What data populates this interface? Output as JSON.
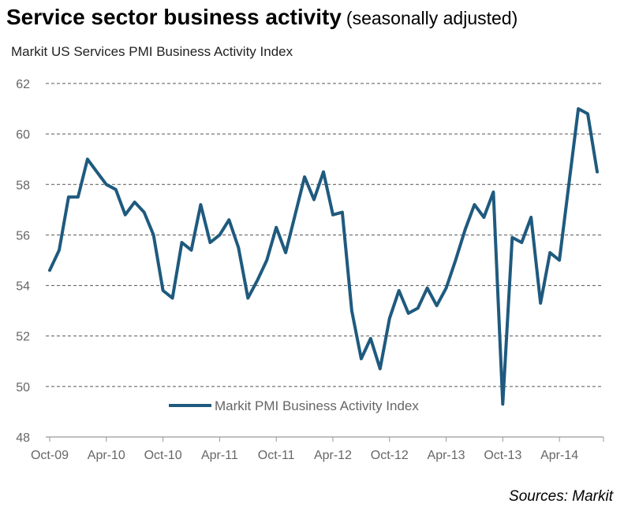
{
  "header": {
    "title": "Service sector business activity",
    "subtitle": "(seasonally adjusted)"
  },
  "footer": {
    "source": "Sources: Markit"
  },
  "colors": {
    "line": "#1f5a7e",
    "grid": "#555555",
    "axis": "#999999",
    "tick_text": "#666666"
  },
  "chart_data": {
    "type": "line",
    "title": "Markit US Services PMI Business Activity Index",
    "xlabel": "",
    "ylabel": "",
    "ylim": [
      48,
      62
    ],
    "yticks": [
      48,
      50,
      52,
      54,
      56,
      58,
      60,
      62
    ],
    "xticks": [
      {
        "label": "Oct-09",
        "index": 0
      },
      {
        "label": "Apr-10",
        "index": 6
      },
      {
        "label": "Oct-10",
        "index": 12
      },
      {
        "label": "Apr-11",
        "index": 18
      },
      {
        "label": "Oct-11",
        "index": 24
      },
      {
        "label": "Apr-12",
        "index": 30
      },
      {
        "label": "Oct-12",
        "index": 36
      },
      {
        "label": "Apr-13",
        "index": 42
      },
      {
        "label": "Oct-13",
        "index": 48
      },
      {
        "label": "Apr-14",
        "index": 54
      }
    ],
    "grid": true,
    "legend_position": "bottom-center",
    "series": [
      {
        "name": "Markit PMI Business Activity Index",
        "values": [
          54.6,
          55.4,
          57.5,
          57.5,
          59.0,
          58.5,
          58.0,
          57.8,
          56.8,
          57.3,
          56.9,
          56.0,
          53.8,
          53.5,
          55.7,
          55.4,
          57.2,
          55.7,
          56.0,
          56.6,
          55.5,
          53.5,
          54.2,
          55.0,
          56.3,
          55.3,
          56.8,
          58.3,
          57.4,
          58.5,
          56.8,
          56.9,
          53.0,
          51.1,
          51.9,
          50.7,
          52.7,
          53.8,
          52.9,
          53.1,
          53.9,
          53.2,
          53.9,
          55.0,
          56.2,
          57.2,
          56.7,
          57.7,
          49.3,
          55.9,
          55.7,
          56.7,
          53.3,
          55.3,
          55.0,
          58.0,
          61.0,
          60.8,
          58.5
        ]
      }
    ]
  }
}
